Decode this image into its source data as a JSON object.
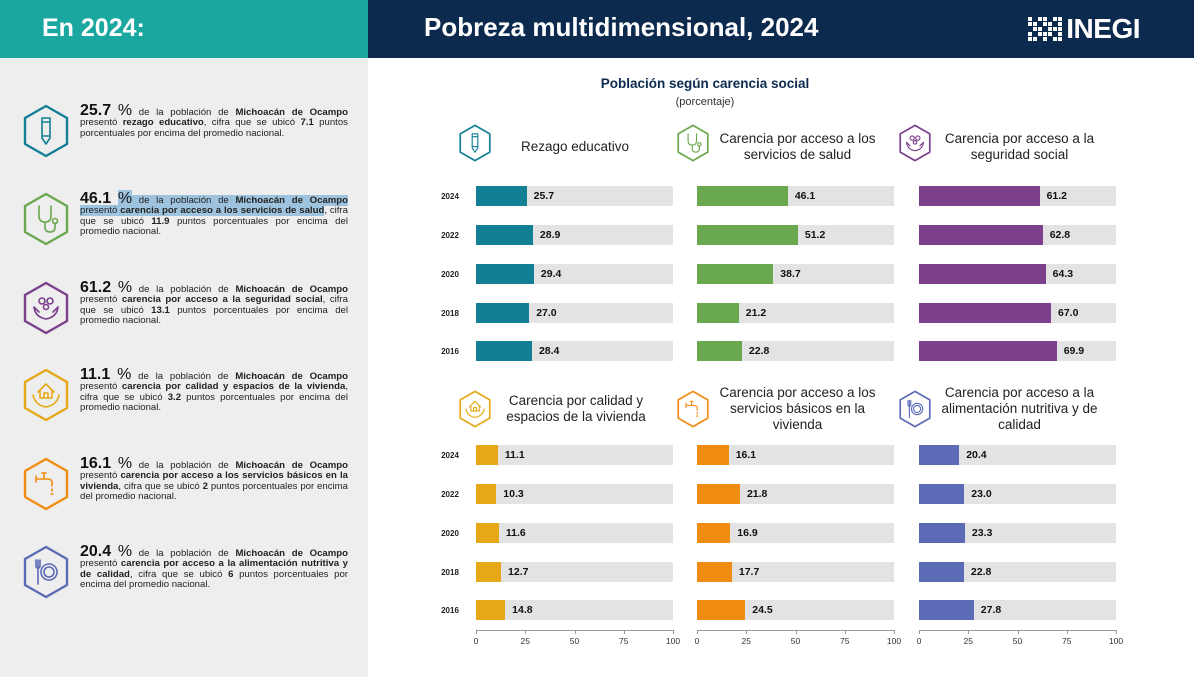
{
  "header": {
    "left_title": "En 2024:",
    "right_title": "Pobreza multidimensional, 2024",
    "logo_text": "INEGI",
    "left_color": "#1aa7a0",
    "right_color": "#0c2a4d"
  },
  "sidebar": {
    "items": [
      {
        "icon": "pencil-hexagon-icon",
        "color": "#127f95",
        "value": "25.7",
        "pct": "%",
        "parts": [
          {
            "t": " de la población de "
          },
          {
            "t": "Michoacán de Ocampo",
            "b": true
          },
          {
            "t": " presentó "
          },
          {
            "t": "rezago educativo",
            "b": true
          },
          {
            "t": ", cifra que se ubicó "
          },
          {
            "t": "7.1",
            "b": true
          },
          {
            "t": " puntos porcentuales por encima del promedio nacional."
          }
        ]
      },
      {
        "icon": "stethoscope-hexagon-icon",
        "color": "#6aa84f",
        "value": "46.1",
        "pct": "%",
        "parts": [
          {
            "t": " de la población de ",
            "h": true
          },
          {
            "t": "Michoacán de Ocampo",
            "b": true,
            "h": true
          },
          {
            "t": " presentó ",
            "h": true
          },
          {
            "t": "carencia por acceso a los servicios de salud",
            "b": true,
            "h": true
          },
          {
            "t": ", cifra que se ubicó "
          },
          {
            "t": "11.9",
            "b": true
          },
          {
            "t": " puntos porcentuales por encima del promedio nacional."
          }
        ]
      },
      {
        "icon": "family-hands-hexagon-icon",
        "color": "#7b3f8c",
        "value": "61.2",
        "pct": "%",
        "parts": [
          {
            "t": " de la población de "
          },
          {
            "t": "Michoacán de Ocampo",
            "b": true
          },
          {
            "t": " presentó "
          },
          {
            "t": "carencia por acceso a la seguridad social",
            "b": true
          },
          {
            "t": ", cifra que se ubicó "
          },
          {
            "t": "13.1",
            "b": true
          },
          {
            "t": " puntos porcentuales por encima del promedio nacional."
          }
        ]
      },
      {
        "icon": "house-hands-hexagon-icon",
        "color": "#e6a817",
        "value": "11.1",
        "pct": "%",
        "parts": [
          {
            "t": " de la población de "
          },
          {
            "t": "Michoacán de Ocampo",
            "b": true
          },
          {
            "t": " presentó "
          },
          {
            "t": "carencia por calidad y espacios de la vivienda",
            "b": true
          },
          {
            "t": ", cifra que se ubicó "
          },
          {
            "t": "3.2",
            "b": true
          },
          {
            "t": " puntos porcentuales por encima del promedio nacional."
          }
        ]
      },
      {
        "icon": "faucet-hexagon-icon",
        "color": "#f08c12",
        "value": "16.1",
        "pct": "%",
        "parts": [
          {
            "t": " de la población de "
          },
          {
            "t": "Michoacán de Ocampo",
            "b": true
          },
          {
            "t": " presentó "
          },
          {
            "t": "carencia por acceso a los servicios básicos en la vivienda",
            "b": true
          },
          {
            "t": ", cifra que se ubicó "
          },
          {
            "t": "2",
            "b": true
          },
          {
            "t": " puntos porcentuales por encima del promedio nacional."
          }
        ]
      },
      {
        "icon": "plate-cutlery-hexagon-icon",
        "color": "#5c6bb5",
        "value": "20.4",
        "pct": "%",
        "parts": [
          {
            "t": " de la población de "
          },
          {
            "t": "Michoacán de Ocampo",
            "b": true
          },
          {
            "t": " presentó "
          },
          {
            "t": "carencia por acceso a la alimentación nutritiva y de calidad",
            "b": true
          },
          {
            "t": ", cifra que se ubicó "
          },
          {
            "t": "6",
            "b": true
          },
          {
            "t": " puntos porcentuales por encima del promedio nacional."
          }
        ]
      }
    ]
  },
  "chart_data": {
    "type": "bar",
    "orientation": "horizontal",
    "title": "Población según carencia social",
    "subtitle": "(porcentaje)",
    "years": [
      "2024",
      "2022",
      "2020",
      "2018",
      "2016"
    ],
    "xlim": [
      0,
      100
    ],
    "xticks": [
      0,
      25,
      50,
      75,
      100
    ],
    "track_color": "#e3e3e3",
    "panels": [
      {
        "label": "Rezago educativo",
        "icon": "pencil-hexagon-icon",
        "color": "#127f95",
        "values": [
          25.7,
          28.9,
          29.4,
          27.0,
          28.4
        ],
        "value_labels": [
          "25.7",
          "28.9",
          "29.4",
          "27.0",
          "28.4"
        ]
      },
      {
        "label": "Carencia por acceso a los servicios de salud",
        "icon": "stethoscope-hexagon-icon",
        "color": "#6aa84f",
        "values": [
          46.1,
          51.2,
          38.7,
          21.2,
          22.8
        ],
        "value_labels": [
          "46.1",
          "51.2",
          "38.7",
          "21.2",
          "22.8"
        ]
      },
      {
        "label": "Carencia por acceso a la seguridad social",
        "icon": "family-hands-hexagon-icon",
        "color": "#7b3f8c",
        "values": [
          61.2,
          62.8,
          64.3,
          67.0,
          69.9
        ],
        "value_labels": [
          "61.2",
          "62.8",
          "64.3",
          "67.0",
          "69.9"
        ]
      },
      {
        "label": "Carencia por calidad y espacios de la vivienda",
        "icon": "house-hands-hexagon-icon",
        "color": "#e6a817",
        "values": [
          11.1,
          10.3,
          11.6,
          12.7,
          14.8
        ],
        "value_labels": [
          "11.1",
          "10.3",
          "11.6",
          "12.7",
          "14.8"
        ]
      },
      {
        "label": "Carencia por acceso a los servicios básicos en la vivienda",
        "icon": "faucet-hexagon-icon",
        "color": "#f08c12",
        "values": [
          16.1,
          21.8,
          16.9,
          17.7,
          24.5
        ],
        "value_labels": [
          "16.1",
          "21.8",
          "16.9",
          "17.7",
          "24.5"
        ]
      },
      {
        "label": "Carencia por acceso a la alimentación nutritiva y de calidad",
        "icon": "plate-cutlery-hexagon-icon",
        "color": "#5c6bb5",
        "values": [
          20.4,
          23.0,
          23.3,
          22.8,
          27.8
        ],
        "value_labels": [
          "20.4",
          "23.0",
          "23.3",
          "22.8",
          "27.8"
        ]
      }
    ]
  }
}
